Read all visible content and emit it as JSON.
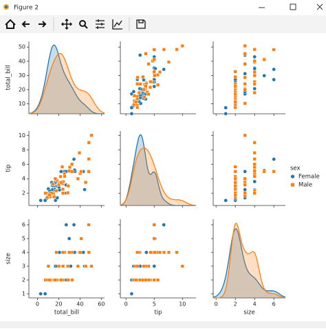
{
  "window": {
    "title": "Figure 2"
  },
  "chart_data": {
    "type": "pairplot",
    "legend_title": "sex",
    "legend": "right",
    "variables": [
      {
        "key": "total_bill",
        "label": "total_bill",
        "xlim": [
          -8,
          63
        ],
        "xticks": [
          0,
          20,
          40,
          60
        ],
        "ylim": [
          3,
          54
        ],
        "yticks": [
          10,
          20,
          30,
          40,
          50
        ]
      },
      {
        "key": "tip",
        "label": "tip",
        "xlim": [
          -1,
          12.4
        ],
        "xticks": [
          0,
          5,
          10
        ],
        "ylim": [
          0.3,
          10.6
        ],
        "yticks": [
          2,
          4,
          6,
          8,
          10
        ]
      },
      {
        "key": "size",
        "label": "size",
        "xlim": [
          -0.3,
          7.2
        ],
        "xticks": [
          0,
          2,
          4,
          6
        ],
        "ylim": [
          0.7,
          6.4
        ],
        "yticks": [
          1,
          2,
          3,
          4,
          5,
          6
        ]
      }
    ],
    "series": [
      {
        "name": "Female",
        "color": "#1f77b4",
        "marker": "circle",
        "total_bill": [
          16.99,
          24.59,
          35.26,
          14.83,
          10.33,
          10.29,
          34.81,
          26.86,
          25.28,
          20.69,
          17.51,
          14.73,
          13.42,
          16.97,
          15.48,
          11.69,
          22.23,
          8.51,
          14.26,
          43.11,
          13,
          12.26,
          18.64,
          7.25,
          16.43,
          3.07,
          27.18,
          29.85,
          44.3,
          34.3,
          27.05,
          16.4,
          18.78,
          13.94,
          31.27,
          20.27
        ],
        "tip": [
          1.01,
          3.61,
          5,
          3.02,
          1.67,
          2.6,
          5.2,
          3.14,
          5,
          2.45,
          3,
          2.2,
          3.48,
          3.5,
          3.02,
          2.31,
          5,
          1.25,
          2.5,
          5,
          2,
          2,
          1.36,
          1,
          2.3,
          1,
          2,
          5.14,
          2.5,
          6.7,
          5,
          2.5,
          3,
          3.06,
          5,
          2.83
        ],
        "size": [
          2,
          4,
          4,
          2,
          3,
          2,
          4,
          2,
          2,
          4,
          2,
          2,
          2,
          3,
          2,
          2,
          2,
          2,
          2,
          4,
          2,
          2,
          3,
          1,
          2,
          1,
          2,
          5,
          3,
          6,
          6,
          2,
          2,
          2,
          3,
          2
        ]
      },
      {
        "name": "Male",
        "color": "#ff7f0e",
        "marker": "square",
        "total_bill": [
          10.34,
          21.01,
          23.68,
          25.29,
          8.77,
          15.04,
          14.78,
          39.42,
          19.82,
          17.81,
          13.37,
          21.7,
          30.4,
          18.24,
          48.27,
          20.65,
          32.4,
          28.55,
          7.51,
          40.17,
          50.81,
          48.33,
          25.56,
          15.69,
          12.03,
          24.06,
          38.07,
          23.33,
          45.35,
          48.17,
          29.93,
          20.08,
          9.55,
          23.95,
          16.82,
          28.97,
          11.24,
          41.19,
          22.42,
          32.68,
          24.01
        ],
        "tip": [
          1.66,
          3.5,
          3.31,
          4.71,
          2,
          1.96,
          3.23,
          7.58,
          3.18,
          2.34,
          2,
          4.3,
          5.6,
          3.76,
          6.73,
          3.35,
          6,
          2.05,
          2,
          4.73,
          10,
          9,
          4.34,
          1.5,
          1.5,
          3.6,
          4,
          5.65,
          3.5,
          5,
          5.07,
          3.15,
          1.45,
          2.55,
          4,
          3,
          1.76,
          5,
          3.48,
          5,
          2
        ],
        "size": [
          3,
          3,
          2,
          4,
          2,
          2,
          2,
          4,
          2,
          4,
          2,
          2,
          4,
          2,
          4,
          3,
          4,
          3,
          2,
          4,
          3,
          4,
          4,
          2,
          2,
          3,
          3,
          2,
          3,
          6,
          4,
          3,
          2,
          2,
          2,
          2,
          2,
          5,
          2,
          2,
          4
        ]
      }
    ]
  }
}
